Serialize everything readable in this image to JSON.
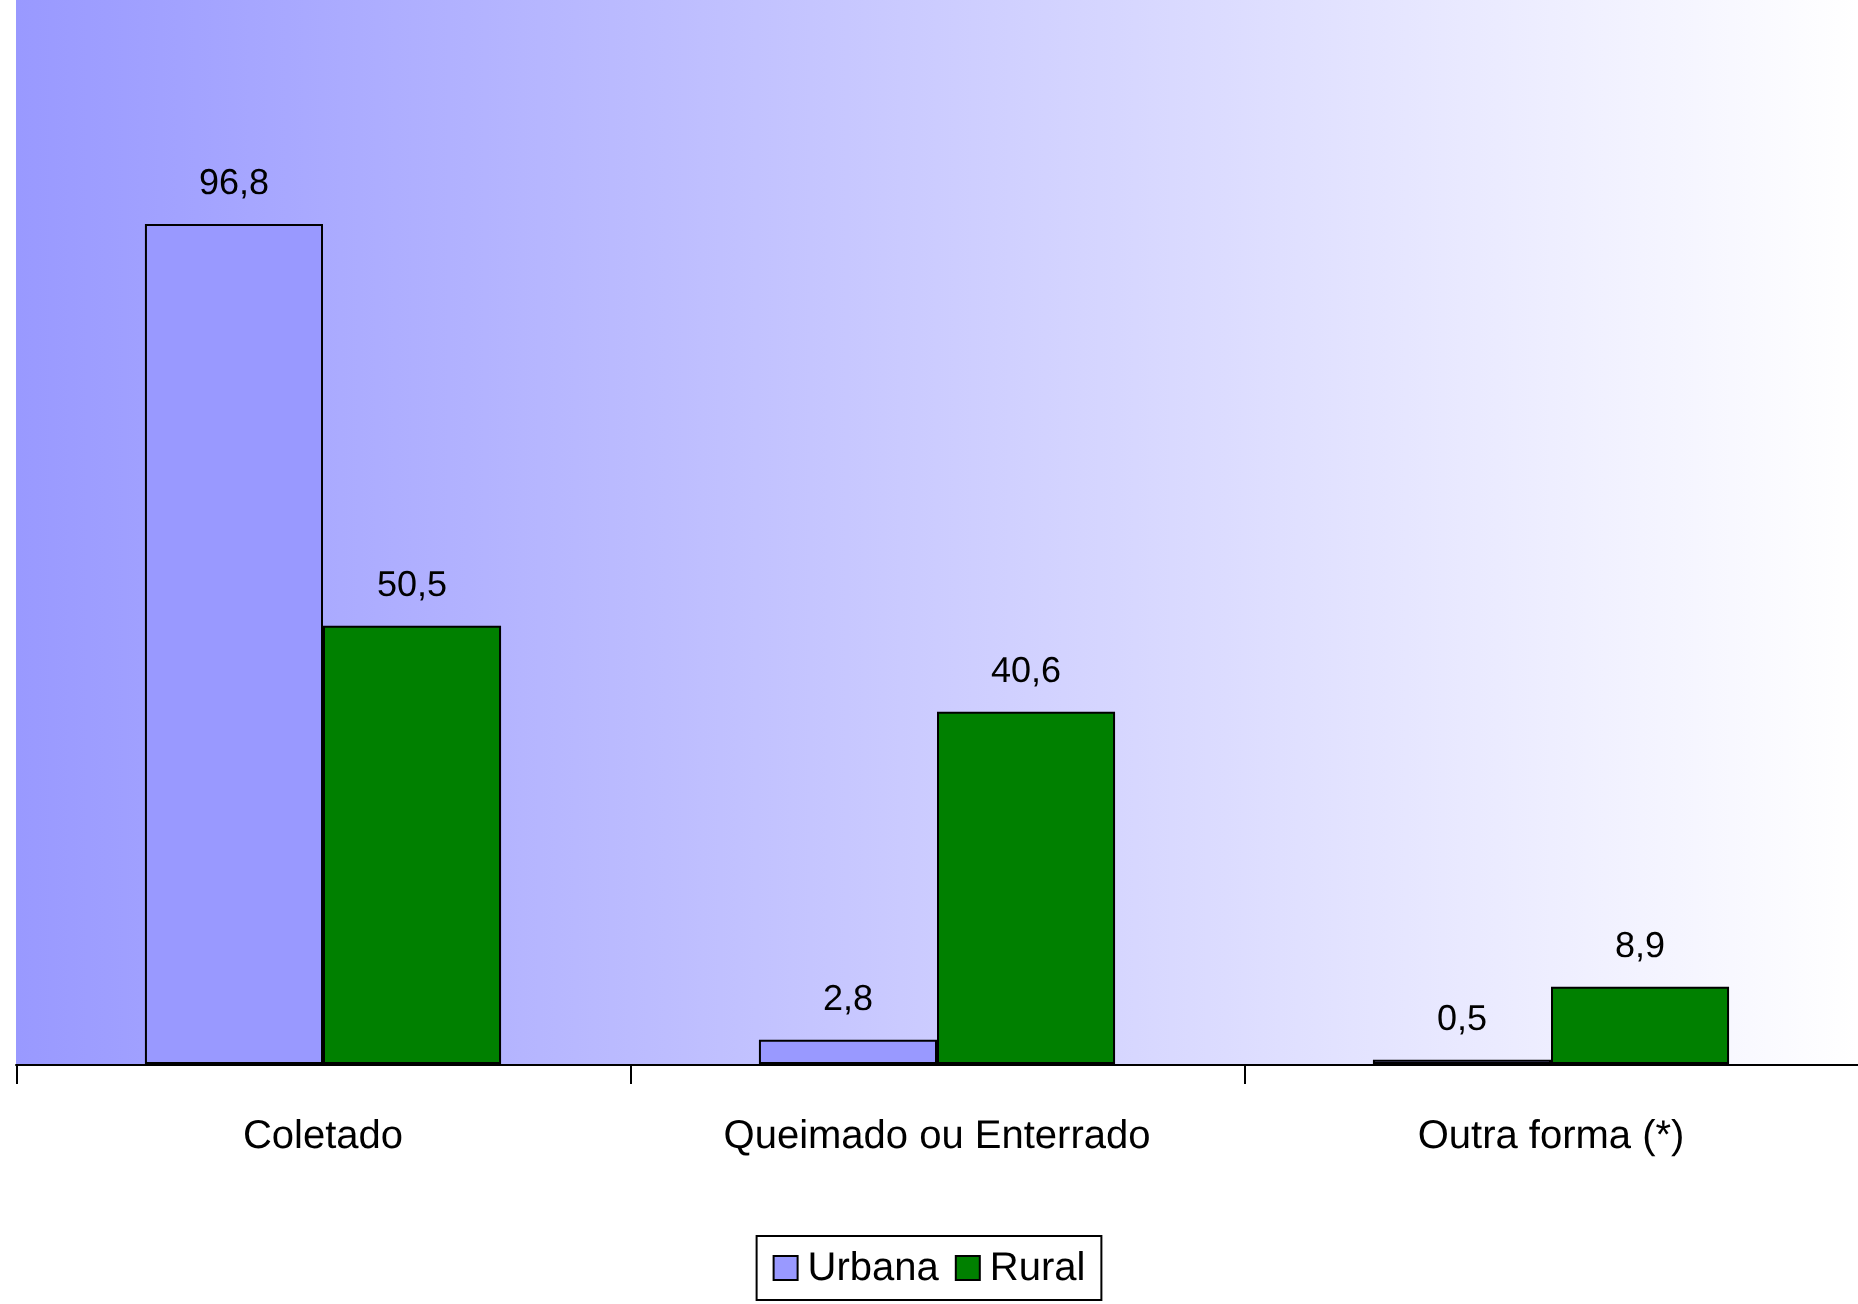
{
  "chart_data": {
    "type": "bar",
    "categories": [
      "Coletado",
      "Queimado ou Enterrado",
      "Outra forma (*)"
    ],
    "series": [
      {
        "name": "Urbana",
        "color": "#9999ff",
        "values": [
          96.8,
          2.8,
          0.5
        ],
        "value_labels": [
          "96,8",
          "2,8",
          "0,5"
        ]
      },
      {
        "name": "Rural",
        "color": "#008000",
        "values": [
          50.5,
          40.6,
          8.9
        ],
        "value_labels": [
          "50,5",
          "40,6",
          "8,9"
        ]
      }
    ],
    "legend": "bottom"
  }
}
